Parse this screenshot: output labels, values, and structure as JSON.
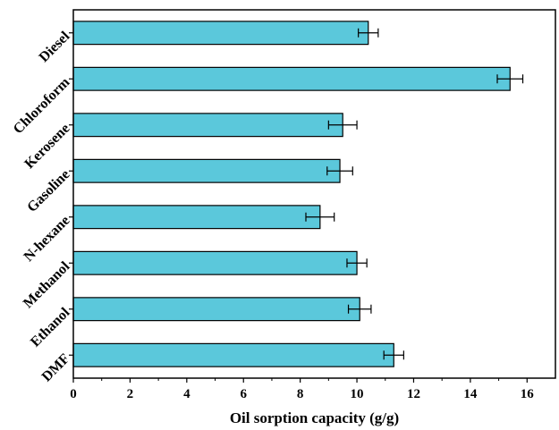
{
  "chart_data": {
    "type": "bar",
    "orientation": "horizontal",
    "title": "",
    "xlabel": "Oil sorption capacity (g/g)",
    "ylabel": "",
    "categories": [
      "Diesel",
      "Chloroform",
      "Kerosene",
      "Gasoline",
      "N-hexane",
      "Methanol",
      "Ethanol",
      "DMF"
    ],
    "values": [
      10.4,
      15.4,
      9.5,
      9.4,
      8.7,
      10.0,
      10.1,
      11.3
    ],
    "errors": [
      0.35,
      0.45,
      0.5,
      0.45,
      0.5,
      0.35,
      0.4,
      0.35
    ],
    "xlim": [
      0,
      17
    ],
    "xticks": [
      0,
      2,
      4,
      6,
      8,
      10,
      12,
      14,
      16
    ],
    "bar_color": "#5BC8DB",
    "grid": false,
    "legend": "none"
  }
}
